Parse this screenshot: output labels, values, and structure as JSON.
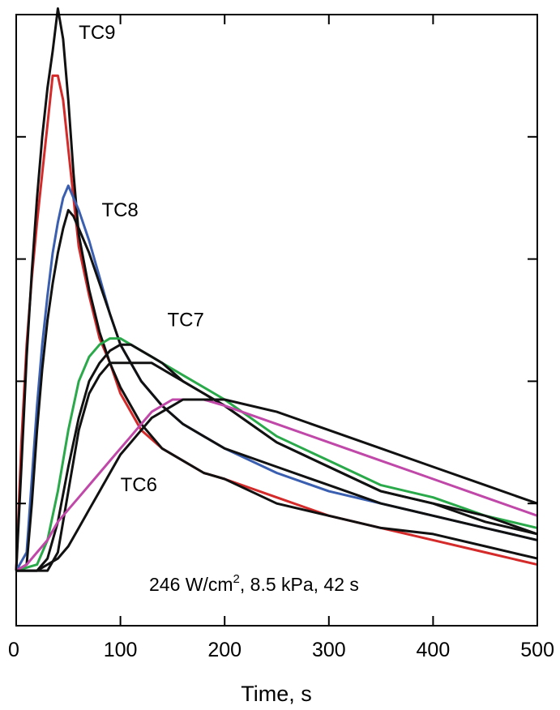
{
  "chart_data": {
    "type": "line",
    "title": "",
    "xlabel": "Time, s",
    "ylabel": "",
    "xlim": [
      0,
      500
    ],
    "ylim": [
      0,
      100
    ],
    "x_ticks": [
      0,
      100,
      200,
      300,
      400,
      500
    ],
    "x_tick_labels": [
      "0",
      "100",
      "200",
      "300",
      "400",
      "500"
    ],
    "y_ticks": [
      20,
      40,
      60,
      80,
      100
    ],
    "grid": false,
    "annotation": {
      "text_main": "246 W/cm",
      "superscript": "2",
      "text_rest": ", 8.5 kPa, 42 s"
    },
    "series": [
      {
        "name": "TC9",
        "color": "#d42a2a",
        "x": [
          0,
          5,
          10,
          15,
          20,
          25,
          30,
          35,
          40,
          45,
          50,
          55,
          60,
          70,
          80,
          90,
          100,
          120,
          140,
          160,
          180,
          200,
          250,
          300,
          350,
          400,
          450,
          500
        ],
        "y": [
          9,
          30,
          46,
          57,
          66,
          74,
          82,
          90,
          90,
          86,
          78,
          70,
          62,
          54,
          47,
          43,
          38,
          32,
          29,
          27,
          25,
          24,
          21,
          18,
          16,
          14,
          12,
          10
        ]
      },
      {
        "name": "TC9",
        "color": "#111111",
        "x": [
          0,
          5,
          10,
          15,
          20,
          25,
          30,
          35,
          40,
          45,
          50,
          55,
          60,
          70,
          80,
          90,
          100,
          120,
          140,
          160,
          180,
          200,
          250,
          300,
          350,
          400,
          450,
          500
        ],
        "y": [
          9,
          26,
          44,
          58,
          70,
          80,
          88,
          94,
          101,
          96,
          86,
          74,
          64,
          55,
          48,
          43,
          39,
          33,
          29,
          27,
          25,
          24,
          20,
          18,
          16,
          15,
          13,
          11
        ]
      },
      {
        "name": "TC8",
        "color": "#3a5fb0",
        "x": [
          0,
          10,
          15,
          20,
          25,
          30,
          35,
          40,
          45,
          50,
          55,
          60,
          70,
          80,
          90,
          100,
          120,
          140,
          160,
          180,
          200,
          250,
          300,
          350,
          400,
          450,
          500
        ],
        "y": [
          9,
          12,
          24,
          36,
          46,
          54,
          61,
          66,
          70,
          72,
          70,
          68,
          63,
          57,
          51,
          46,
          40,
          36,
          33,
          31,
          29,
          25,
          22,
          20,
          18,
          16,
          14
        ]
      },
      {
        "name": "TC8",
        "color": "#111111",
        "x": [
          0,
          10,
          15,
          20,
          25,
          30,
          35,
          40,
          45,
          50,
          55,
          60,
          70,
          80,
          90,
          100,
          120,
          140,
          160,
          180,
          200,
          250,
          300,
          350,
          400,
          450,
          500
        ],
        "y": [
          9,
          10,
          20,
          32,
          42,
          50,
          56,
          61,
          65,
          68,
          67,
          65,
          61,
          56,
          51,
          46,
          40,
          36,
          33,
          31,
          29,
          26,
          23,
          20,
          18,
          16,
          14
        ]
      },
      {
        "name": "TC7",
        "color": "#2aa94a",
        "x": [
          0,
          20,
          30,
          40,
          50,
          60,
          70,
          80,
          90,
          100,
          110,
          120,
          130,
          140,
          160,
          180,
          200,
          250,
          300,
          350,
          400,
          450,
          500
        ],
        "y": [
          9,
          10,
          14,
          22,
          32,
          40,
          44,
          46,
          47,
          47,
          46,
          45,
          44,
          43,
          41,
          39,
          37,
          31,
          27,
          23,
          21,
          18,
          16
        ]
      },
      {
        "name": "TC7",
        "color": "#111111",
        "x": [
          0,
          20,
          30,
          40,
          50,
          60,
          70,
          80,
          90,
          100,
          110,
          120,
          130,
          140,
          160,
          180,
          200,
          250,
          300,
          350,
          400,
          450,
          500
        ],
        "y": [
          9,
          9,
          11,
          17,
          26,
          34,
          40,
          43,
          45,
          46,
          46,
          45,
          44,
          43,
          40,
          38,
          36,
          30,
          26,
          22,
          20,
          17,
          15
        ]
      },
      {
        "name": "TC7",
        "color": "#111111",
        "x": [
          0,
          30,
          40,
          50,
          60,
          70,
          80,
          90,
          100,
          110,
          120,
          130,
          140,
          150,
          160,
          180,
          200,
          250,
          300,
          350,
          400,
          450,
          500
        ],
        "y": [
          9,
          9,
          12,
          22,
          32,
          38,
          41,
          43,
          43,
          43,
          43,
          43,
          42,
          41,
          40,
          38,
          36,
          30,
          26,
          22,
          20,
          18,
          15
        ]
      },
      {
        "name": "TC6",
        "color": "#c048a8",
        "x": [
          0,
          10,
          20,
          30,
          40,
          50,
          60,
          70,
          80,
          90,
          100,
          110,
          120,
          130,
          140,
          150,
          160,
          180,
          200,
          250,
          300,
          350,
          400,
          450,
          500
        ],
        "y": [
          9,
          10,
          12,
          14,
          17,
          19,
          21,
          23,
          25,
          27,
          29,
          31,
          33,
          35,
          36,
          37,
          37,
          37,
          36,
          33,
          30,
          27,
          24,
          21,
          18
        ]
      },
      {
        "name": "TC6",
        "color": "#111111",
        "x": [
          0,
          10,
          20,
          30,
          40,
          50,
          60,
          70,
          80,
          90,
          100,
          110,
          120,
          130,
          140,
          150,
          160,
          180,
          200,
          250,
          300,
          350,
          400,
          450,
          500
        ],
        "y": [
          9,
          9,
          9,
          10,
          11,
          13,
          16,
          19,
          22,
          25,
          28,
          30,
          32,
          34,
          35,
          36,
          37,
          37,
          37,
          35,
          32,
          29,
          26,
          23,
          20
        ]
      }
    ],
    "labels": [
      {
        "text": "TC9",
        "x": 60,
        "y": 96
      },
      {
        "text": "TC8",
        "x": 82,
        "y": 67
      },
      {
        "text": "TC7",
        "x": 145,
        "y": 49
      },
      {
        "text": "TC6",
        "x": 100,
        "y": 22
      }
    ]
  }
}
